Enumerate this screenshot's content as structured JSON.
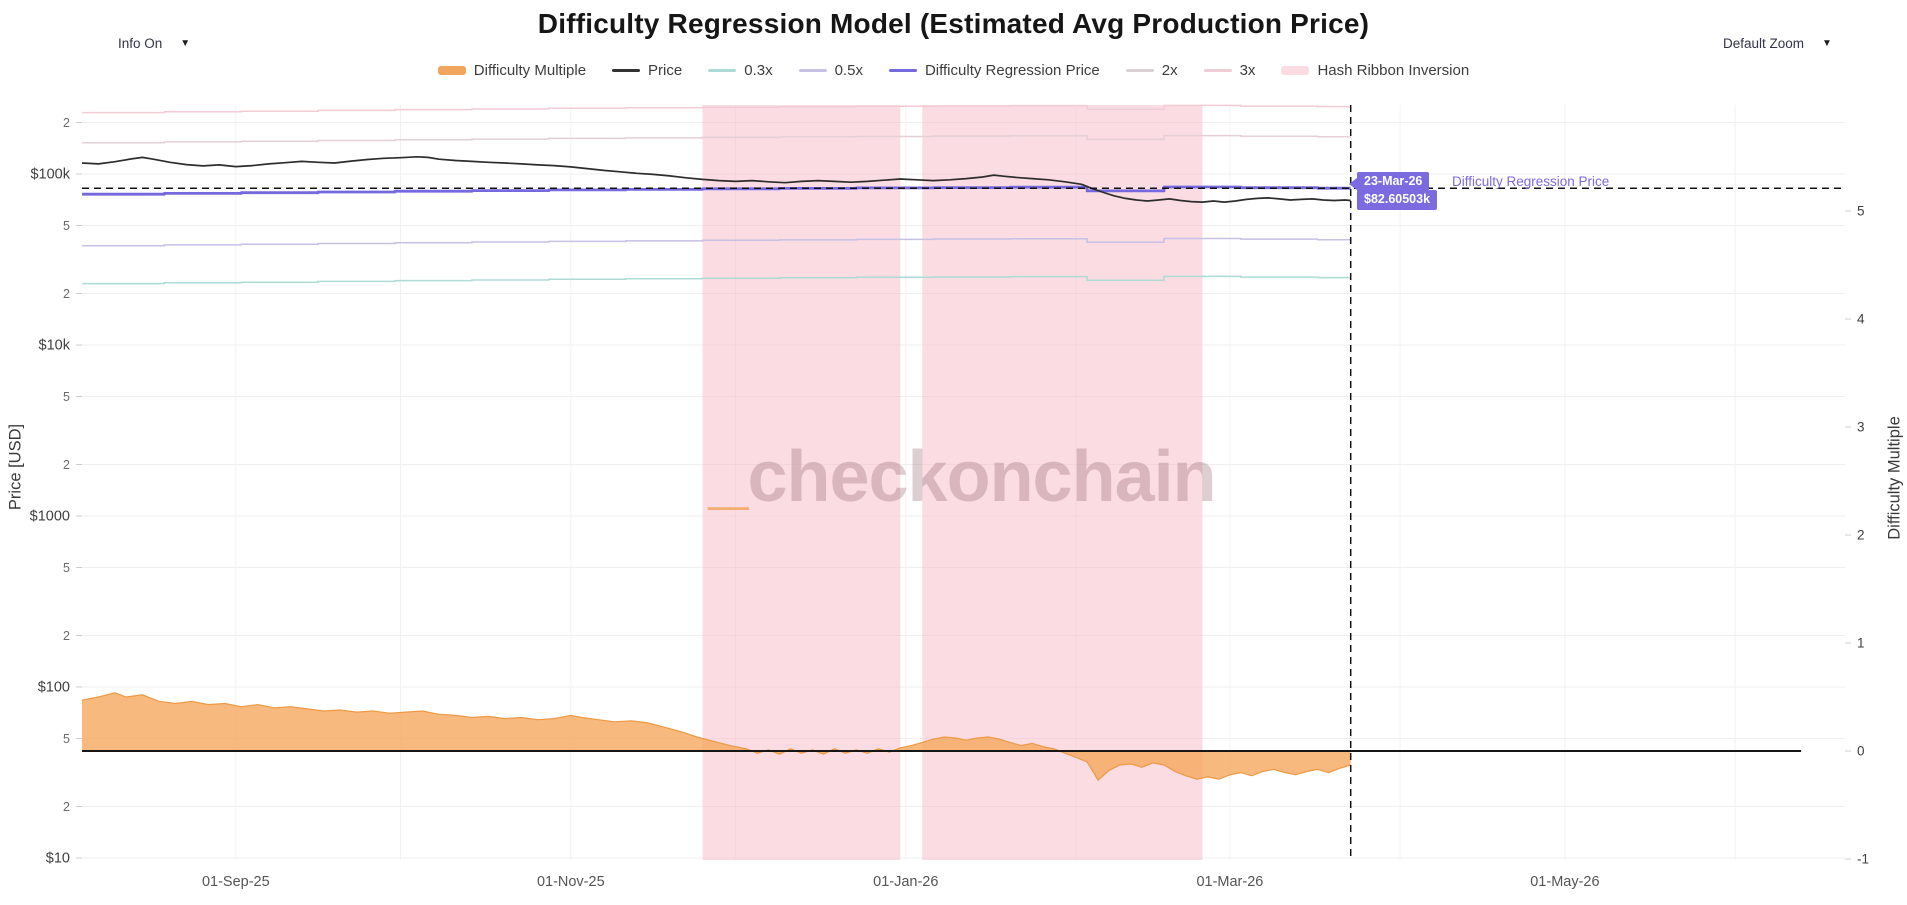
{
  "page": {
    "title": "Difficulty Regression Model (Estimated Avg Production Price)"
  },
  "controls": {
    "info_dropdown": {
      "label": "Info On",
      "icon": "caret-down",
      "caret": "▼"
    },
    "zoom_dropdown": {
      "label": "Default Zoom",
      "icon": "caret-down",
      "caret": "▼"
    }
  },
  "watermark": {
    "prefix": "_",
    "text": "checkonchain"
  },
  "tooltip": {
    "date": "23-Mar-26",
    "value": "$82.60503k",
    "series": "Difficulty Regression Price",
    "accent_color": "#7b6ae0"
  },
  "legend": [
    {
      "label": "Difficulty Multiple",
      "type": "bar",
      "color": "#f2a55e"
    },
    {
      "label": "Price",
      "type": "line",
      "color": "#333333"
    },
    {
      "label": "0.3x",
      "type": "line",
      "color": "#aedbd5"
    },
    {
      "label": "0.5x",
      "type": "line",
      "color": "#c6c1e5"
    },
    {
      "label": "Difficulty Regression Price",
      "type": "line",
      "color": "#7668dd"
    },
    {
      "label": "2x",
      "type": "line",
      "color": "#dcd2d6"
    },
    {
      "label": "3x",
      "type": "line",
      "color": "#eecdd6"
    },
    {
      "label": "Hash Ribbon Inversion",
      "type": "bar",
      "color": "#fadce2"
    }
  ],
  "chart_data": {
    "type": "line",
    "title": "Difficulty Regression Model (Estimated Avg Production Price)",
    "x_axis": {
      "range": [
        "2025-08-04",
        "2026-06-21"
      ],
      "ticks": [
        {
          "label": "01-Sep-25",
          "date": "2025-09-01"
        },
        {
          "label": "01-Nov-25",
          "date": "2025-11-01"
        },
        {
          "label": "01-Jan-26",
          "date": "2026-01-01"
        },
        {
          "label": "01-Mar-26",
          "date": "2026-03-01"
        },
        {
          "label": "01-May-26",
          "date": "2026-05-01"
        }
      ],
      "gridline_dates": [
        "2025-09-01",
        "2025-10-01",
        "2025-11-01",
        "2025-12-01",
        "2026-01-01",
        "2026-02-01",
        "2026-03-01",
        "2026-04-01",
        "2026-05-01",
        "2026-06-01"
      ]
    },
    "y_axis_price": {
      "title": "Price [USD]",
      "scale": "log",
      "range_usd": [
        10,
        250000
      ],
      "ticks": [
        {
          "label": "2",
          "value": 200000
        },
        {
          "label": "$100k",
          "value": 100000
        },
        {
          "label": "5",
          "value": 50000
        },
        {
          "label": "2",
          "value": 20000
        },
        {
          "label": "$10k",
          "value": 10000
        },
        {
          "label": "5",
          "value": 5000
        },
        {
          "label": "2",
          "value": 2000
        },
        {
          "label": "$1000",
          "value": 1000
        },
        {
          "label": "5",
          "value": 500
        },
        {
          "label": "2",
          "value": 200
        },
        {
          "label": "$100",
          "value": 100
        },
        {
          "label": "5",
          "value": 50
        },
        {
          "label": "2",
          "value": 20
        },
        {
          "label": "$10",
          "value": 10
        }
      ]
    },
    "y_axis_multiple": {
      "title": "Difficulty Multiple",
      "scale": "linear",
      "range": [
        -1.05,
        5.95
      ],
      "ticks": [
        5,
        4,
        3,
        2,
        1,
        0,
        -1
      ]
    },
    "band_color": "#f6b9c6",
    "zero_line_color": "#161616",
    "hash_ribbon_inversions": [
      {
        "from": "2025-11-25",
        "to": "2025-12-31"
      },
      {
        "from": "2026-01-04",
        "to": "2026-02-24"
      }
    ],
    "marker": {
      "date": "2026-03-23",
      "regression_price_usd": 82605.03
    },
    "multiplier_lines": [
      {
        "mult": 0.3,
        "color": "#aedbd5"
      },
      {
        "mult": 0.5,
        "color": "#c6c1e5"
      },
      {
        "mult": 2,
        "color": "#e4d0d6"
      },
      {
        "mult": 3,
        "color": "#f3cbd5"
      }
    ],
    "series": [
      {
        "name": "Price",
        "axis": "price",
        "unit": "USD_thousands",
        "color": "#2d2d2d",
        "style": "line",
        "points": [
          [
            "2025-08-04",
            116
          ],
          [
            "2025-08-07",
            114.5
          ],
          [
            "2025-08-10",
            118
          ],
          [
            "2025-08-13",
            122.5
          ],
          [
            "2025-08-15",
            125
          ],
          [
            "2025-08-17",
            122
          ],
          [
            "2025-08-20",
            117
          ],
          [
            "2025-08-23",
            113.5
          ],
          [
            "2025-08-26",
            111.5
          ],
          [
            "2025-08-29",
            113
          ],
          [
            "2025-09-01",
            110.5
          ],
          [
            "2025-09-04",
            112
          ],
          [
            "2025-09-07",
            114.5
          ],
          [
            "2025-09-10",
            116.5
          ],
          [
            "2025-09-13",
            118.5
          ],
          [
            "2025-09-16",
            117
          ],
          [
            "2025-09-19",
            116
          ],
          [
            "2025-09-22",
            119
          ],
          [
            "2025-09-25",
            121.5
          ],
          [
            "2025-09-28",
            123.5
          ],
          [
            "2025-10-01",
            124.5
          ],
          [
            "2025-10-04",
            126
          ],
          [
            "2025-10-06",
            125
          ],
          [
            "2025-10-08",
            122
          ],
          [
            "2025-10-11",
            120
          ],
          [
            "2025-10-14",
            118.5
          ],
          [
            "2025-10-17",
            117
          ],
          [
            "2025-10-20",
            116
          ],
          [
            "2025-10-23",
            114.5
          ],
          [
            "2025-10-26",
            113
          ],
          [
            "2025-10-29",
            112
          ],
          [
            "2025-11-01",
            110
          ],
          [
            "2025-11-04",
            107.5
          ],
          [
            "2025-11-07",
            105
          ],
          [
            "2025-11-10",
            103
          ],
          [
            "2025-11-13",
            101
          ],
          [
            "2025-11-16",
            99.5
          ],
          [
            "2025-11-19",
            97.5
          ],
          [
            "2025-11-22",
            95
          ],
          [
            "2025-11-25",
            93
          ],
          [
            "2025-11-28",
            91.5
          ],
          [
            "2025-12-01",
            90.5
          ],
          [
            "2025-12-04",
            91.5
          ],
          [
            "2025-12-07",
            90
          ],
          [
            "2025-12-10",
            89
          ],
          [
            "2025-12-13",
            90.5
          ],
          [
            "2025-12-16",
            91.5
          ],
          [
            "2025-12-19",
            90.5
          ],
          [
            "2025-12-22",
            89.5
          ],
          [
            "2025-12-25",
            90.5
          ],
          [
            "2025-12-28",
            92
          ],
          [
            "2025-12-31",
            93.5
          ],
          [
            "2026-01-03",
            92.5
          ],
          [
            "2026-01-06",
            91.5
          ],
          [
            "2026-01-09",
            92.5
          ],
          [
            "2026-01-12",
            94
          ],
          [
            "2026-01-15",
            96
          ],
          [
            "2026-01-17",
            98.5
          ],
          [
            "2026-01-19",
            97
          ],
          [
            "2026-01-21",
            95.5
          ],
          [
            "2026-01-24",
            94
          ],
          [
            "2026-01-27",
            92.5
          ],
          [
            "2026-01-30",
            90
          ],
          [
            "2026-02-02",
            87
          ],
          [
            "2026-02-04",
            82
          ],
          [
            "2026-02-06",
            78
          ],
          [
            "2026-02-08",
            74.5
          ],
          [
            "2026-02-10",
            72
          ],
          [
            "2026-02-12",
            70.5
          ],
          [
            "2026-02-14",
            69.5
          ],
          [
            "2026-02-16",
            70.5
          ],
          [
            "2026-02-18",
            71.5
          ],
          [
            "2026-02-20",
            70
          ],
          [
            "2026-02-22",
            69
          ],
          [
            "2026-02-24",
            68.5
          ],
          [
            "2026-02-26",
            69.5
          ],
          [
            "2026-02-28",
            68.5
          ],
          [
            "2026-03-02",
            69.5
          ],
          [
            "2026-03-04",
            71
          ],
          [
            "2026-03-06",
            72
          ],
          [
            "2026-03-08",
            72.5
          ],
          [
            "2026-03-10",
            71.5
          ],
          [
            "2026-03-12",
            70.5
          ],
          [
            "2026-03-14",
            71
          ],
          [
            "2026-03-16",
            71.5
          ],
          [
            "2026-03-18",
            70.5
          ],
          [
            "2026-03-20",
            70
          ],
          [
            "2026-03-22",
            70.5
          ],
          [
            "2026-03-23",
            70
          ]
        ]
      },
      {
        "name": "Difficulty Regression Price",
        "axis": "price",
        "unit": "USD_thousands",
        "color": "#7668dd",
        "style": "step",
        "points": [
          [
            "2025-08-04",
            76.2
          ],
          [
            "2025-08-19",
            77.0
          ],
          [
            "2025-09-02",
            77.7
          ],
          [
            "2025-09-16",
            78.5
          ],
          [
            "2025-09-30",
            79.3
          ],
          [
            "2025-10-14",
            80.0
          ],
          [
            "2025-10-28",
            80.7
          ],
          [
            "2025-11-11",
            81.3
          ],
          [
            "2025-11-25",
            81.9
          ],
          [
            "2025-12-09",
            82.4
          ],
          [
            "2025-12-23",
            82.9
          ],
          [
            "2026-01-06",
            83.3
          ],
          [
            "2026-01-20",
            83.7
          ],
          [
            "2026-02-03",
            79.7
          ],
          [
            "2026-02-17",
            83.9
          ],
          [
            "2026-03-03",
            83.2
          ],
          [
            "2026-03-17",
            82.605
          ],
          [
            "2026-03-23",
            82.605
          ]
        ]
      },
      {
        "name": "Difficulty Multiple",
        "axis": "multiple",
        "unit": "multiple",
        "color": "#f2a55e",
        "style": "area",
        "points": [
          [
            "2025-08-04",
            0.47
          ],
          [
            "2025-08-07",
            0.5
          ],
          [
            "2025-08-10",
            0.54
          ],
          [
            "2025-08-12",
            0.5
          ],
          [
            "2025-08-15",
            0.52
          ],
          [
            "2025-08-18",
            0.46
          ],
          [
            "2025-08-21",
            0.44
          ],
          [
            "2025-08-24",
            0.46
          ],
          [
            "2025-08-27",
            0.43
          ],
          [
            "2025-08-30",
            0.44
          ],
          [
            "2025-09-02",
            0.41
          ],
          [
            "2025-09-05",
            0.43
          ],
          [
            "2025-09-08",
            0.4
          ],
          [
            "2025-09-11",
            0.41
          ],
          [
            "2025-09-14",
            0.39
          ],
          [
            "2025-09-17",
            0.37
          ],
          [
            "2025-09-20",
            0.38
          ],
          [
            "2025-09-23",
            0.36
          ],
          [
            "2025-09-26",
            0.37
          ],
          [
            "2025-09-29",
            0.35
          ],
          [
            "2025-10-02",
            0.36
          ],
          [
            "2025-10-05",
            0.37
          ],
          [
            "2025-10-08",
            0.34
          ],
          [
            "2025-10-11",
            0.33
          ],
          [
            "2025-10-14",
            0.31
          ],
          [
            "2025-10-17",
            0.32
          ],
          [
            "2025-10-20",
            0.3
          ],
          [
            "2025-10-23",
            0.31
          ],
          [
            "2025-10-26",
            0.29
          ],
          [
            "2025-10-29",
            0.3
          ],
          [
            "2025-11-01",
            0.33
          ],
          [
            "2025-11-03",
            0.31
          ],
          [
            "2025-11-06",
            0.29
          ],
          [
            "2025-11-09",
            0.27
          ],
          [
            "2025-11-12",
            0.28
          ],
          [
            "2025-11-15",
            0.26
          ],
          [
            "2025-11-18",
            0.22
          ],
          [
            "2025-11-21",
            0.18
          ],
          [
            "2025-11-24",
            0.13
          ],
          [
            "2025-11-27",
            0.09
          ],
          [
            "2025-11-30",
            0.05
          ],
          [
            "2025-12-03",
            0.02
          ],
          [
            "2025-12-05",
            -0.02
          ],
          [
            "2025-12-07",
            0.01
          ],
          [
            "2025-12-09",
            -0.03
          ],
          [
            "2025-12-11",
            0.02
          ],
          [
            "2025-12-13",
            -0.02
          ],
          [
            "2025-12-15",
            0.01
          ],
          [
            "2025-12-17",
            -0.03
          ],
          [
            "2025-12-19",
            0.02
          ],
          [
            "2025-12-21",
            -0.02
          ],
          [
            "2025-12-23",
            0.01
          ],
          [
            "2025-12-25",
            -0.02
          ],
          [
            "2025-12-27",
            0.02
          ],
          [
            "2025-12-29",
            -0.01
          ],
          [
            "2025-12-31",
            0.03
          ],
          [
            "2026-01-02",
            0.05
          ],
          [
            "2026-01-04",
            0.08
          ],
          [
            "2026-01-06",
            0.11
          ],
          [
            "2026-01-08",
            0.13
          ],
          [
            "2026-01-10",
            0.12
          ],
          [
            "2026-01-12",
            0.1
          ],
          [
            "2026-01-14",
            0.12
          ],
          [
            "2026-01-16",
            0.13
          ],
          [
            "2026-01-18",
            0.11
          ],
          [
            "2026-01-20",
            0.08
          ],
          [
            "2026-01-22",
            0.05
          ],
          [
            "2026-01-24",
            0.07
          ],
          [
            "2026-01-26",
            0.04
          ],
          [
            "2026-01-28",
            0.02
          ],
          [
            "2026-01-30",
            -0.02
          ],
          [
            "2026-02-01",
            -0.06
          ],
          [
            "2026-02-03",
            -0.1
          ],
          [
            "2026-02-05",
            -0.27
          ],
          [
            "2026-02-07",
            -0.18
          ],
          [
            "2026-02-09",
            -0.13
          ],
          [
            "2026-02-11",
            -0.12
          ],
          [
            "2026-02-13",
            -0.15
          ],
          [
            "2026-02-15",
            -0.11
          ],
          [
            "2026-02-17",
            -0.13
          ],
          [
            "2026-02-19",
            -0.19
          ],
          [
            "2026-02-21",
            -0.23
          ],
          [
            "2026-02-23",
            -0.26
          ],
          [
            "2026-02-25",
            -0.24
          ],
          [
            "2026-02-27",
            -0.26
          ],
          [
            "2026-03-01",
            -0.22
          ],
          [
            "2026-03-03",
            -0.2
          ],
          [
            "2026-03-05",
            -0.23
          ],
          [
            "2026-03-07",
            -0.19
          ],
          [
            "2026-03-09",
            -0.17
          ],
          [
            "2026-03-11",
            -0.2
          ],
          [
            "2026-03-13",
            -0.22
          ],
          [
            "2026-03-15",
            -0.19
          ],
          [
            "2026-03-17",
            -0.17
          ],
          [
            "2026-03-19",
            -0.2
          ],
          [
            "2026-03-21",
            -0.16
          ],
          [
            "2026-03-23",
            -0.13
          ]
        ]
      }
    ]
  }
}
